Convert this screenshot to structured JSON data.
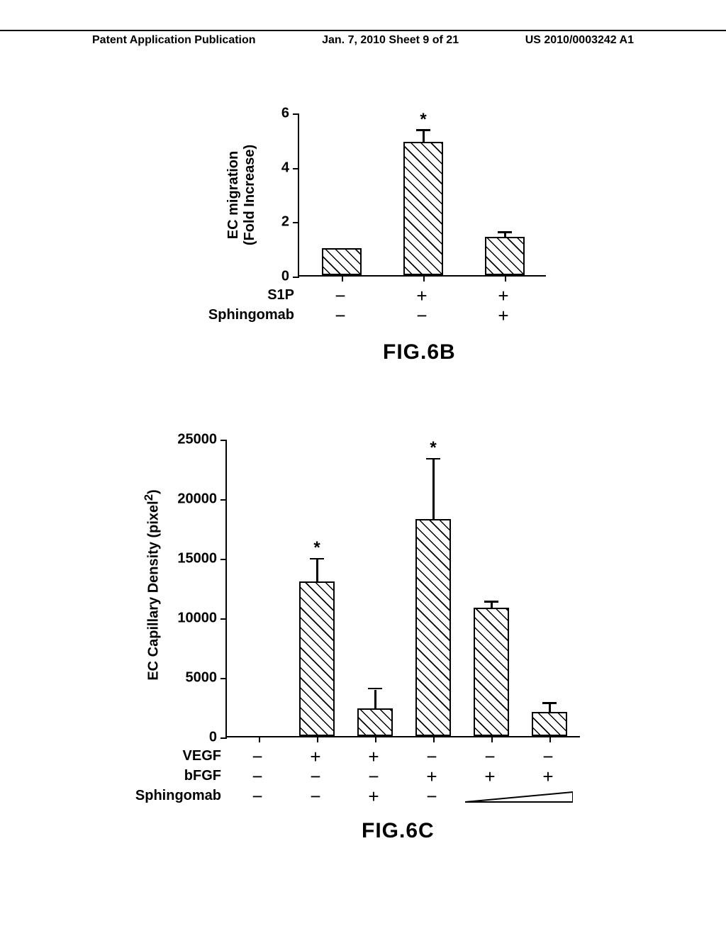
{
  "header": {
    "left": "Patent Application Publication",
    "center": "Jan. 7, 2010  Sheet 9 of 21",
    "right": "US 2010/0003242 A1"
  },
  "chartB": {
    "type": "bar",
    "y_axis_title": "EC migration\n(Fold Increase)",
    "ylim": [
      0,
      6
    ],
    "yticks": [
      0,
      2,
      4,
      6
    ],
    "categories": 3,
    "values": [
      1.0,
      4.9,
      1.4
    ],
    "errors": [
      0,
      0.4,
      0.15
    ],
    "stars": [
      false,
      true,
      false
    ],
    "conditions": [
      {
        "label": "S1P",
        "vals": [
          "−",
          "+",
          "+"
        ]
      },
      {
        "label": "Sphingomab",
        "vals": [
          "−",
          "−",
          "+"
        ]
      }
    ],
    "caption": "FIG.6B",
    "bar_color": "#ffffff",
    "hatch_color": "#000000"
  },
  "chartC": {
    "type": "bar",
    "y_axis_title": "EC Capillary Density (pixel²)",
    "ylim": [
      0,
      25000
    ],
    "yticks": [
      0,
      5000,
      10000,
      15000,
      20000,
      25000
    ],
    "categories": 6,
    "values": [
      0,
      13000,
      2300,
      18200,
      10800,
      2000
    ],
    "errors": [
      0,
      1800,
      1600,
      5000,
      400,
      700
    ],
    "stars": [
      false,
      true,
      false,
      true,
      false,
      false
    ],
    "conditions": [
      {
        "label": "VEGF",
        "vals": [
          "−",
          "+",
          "+",
          "−",
          "−",
          "−"
        ]
      },
      {
        "label": "bFGF",
        "vals": [
          "−",
          "−",
          "−",
          "+",
          "+",
          "+"
        ]
      },
      {
        "label": "Sphingomab",
        "vals": [
          "−",
          "−",
          "+",
          "−",
          "WEDGE",
          "WEDGE"
        ]
      }
    ],
    "caption": "FIG.6C",
    "bar_color": "#ffffff",
    "hatch_color": "#000000"
  }
}
